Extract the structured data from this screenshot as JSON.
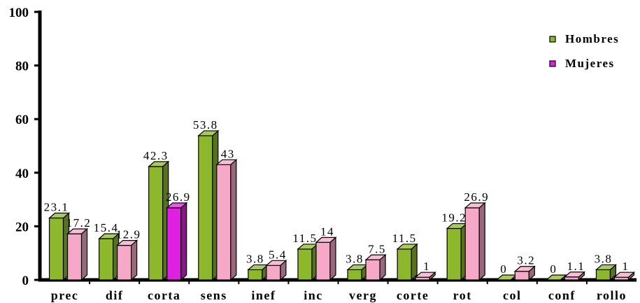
{
  "chart_data": {
    "type": "bar",
    "categories": [
      "prec",
      "dif",
      "corta",
      "sens",
      "inef",
      "inc",
      "verg",
      "corte",
      "rot",
      "col",
      "conf",
      "rollo"
    ],
    "series": [
      {
        "name": "Hombres",
        "values": [
          23.1,
          15.4,
          42.3,
          53.8,
          3.8,
          11.5,
          3.8,
          11.5,
          19.2,
          0,
          0,
          3.8
        ],
        "labels": [
          "23.1",
          "15.4",
          "42.3",
          "53.8",
          "3.8",
          "11.5",
          "3.8",
          "11.5",
          "19.2",
          "0",
          "0",
          "3.8"
        ],
        "color": "#8DB82B"
      },
      {
        "name": "Mujeres",
        "values": [
          17.2,
          12.9,
          26.9,
          43,
          5.4,
          14,
          7.5,
          1,
          26.9,
          3.2,
          1.1,
          1
        ],
        "labels": [
          "17.2",
          "12.9",
          "26.9",
          "43",
          "5.4",
          "14",
          "7.5",
          "1",
          "26.9",
          "3.2",
          "1.1",
          "1"
        ],
        "color": "#F5A8C8",
        "highlight_color": "#E020E0",
        "highlight_category": "corta"
      }
    ],
    "ylim": [
      0,
      100
    ],
    "yticks": [
      0,
      20,
      40,
      60,
      80,
      100
    ],
    "legend": "top-right",
    "grid": false
  }
}
